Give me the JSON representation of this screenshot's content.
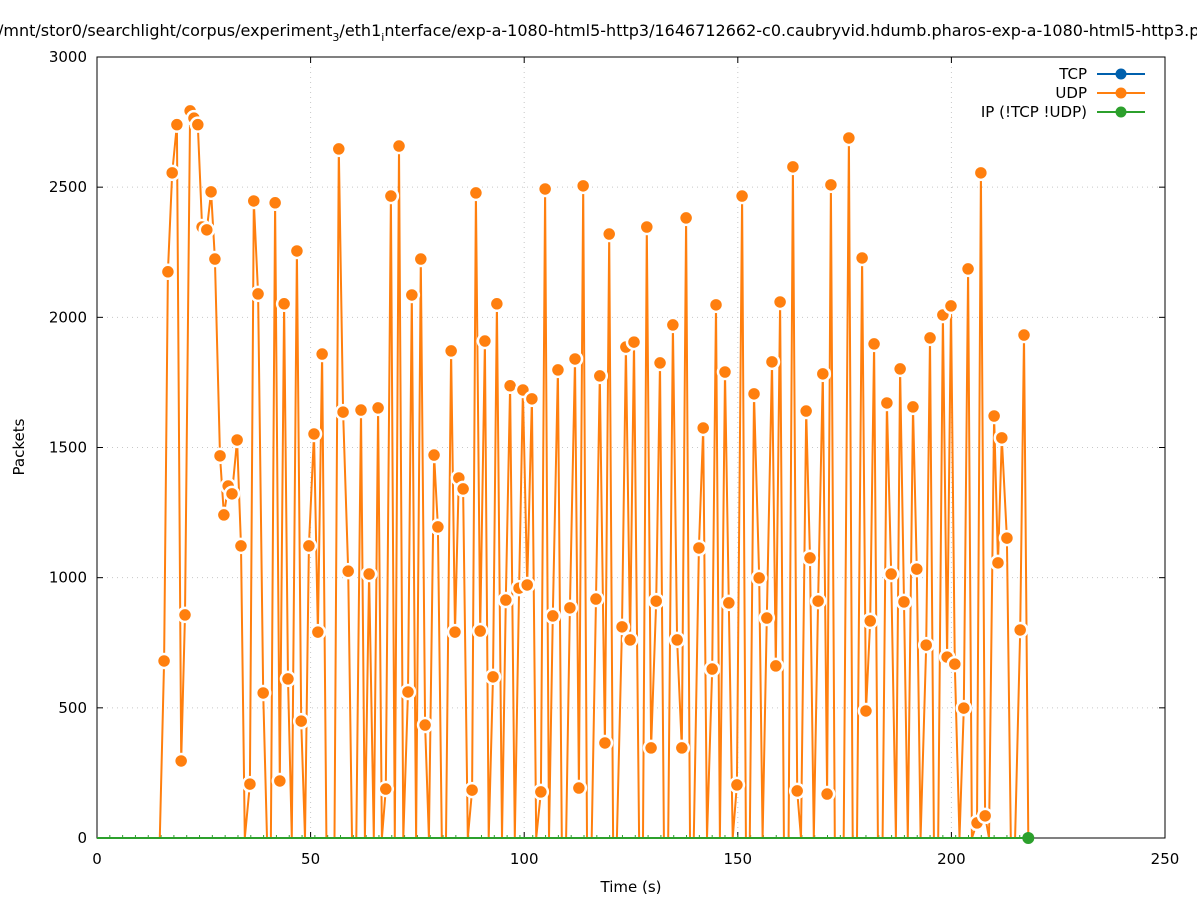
{
  "chart_data": {
    "type": "line",
    "title": "/mnt/stor0/searchlight/corpus/experiment_3/eth1_interface/exp-a-1080-html5-http3/1646712662-c0.caubryvid.hdumb.pharos-exp-a-1080-html5-http3.p",
    "xlabel": "Time (s)",
    "ylabel": "Packets",
    "xlim": [
      0,
      250
    ],
    "ylim": [
      0,
      3000
    ],
    "xticks": [
      0,
      50,
      100,
      150,
      200,
      250
    ],
    "yticks": [
      0,
      500,
      1000,
      1500,
      2000,
      2500,
      3000
    ],
    "grid": true,
    "legend_position": "top-right",
    "series": [
      {
        "name": "TCP",
        "color": "#0060ad",
        "points": []
      },
      {
        "name": "UDP",
        "color": "#ff7f0e",
        "points": [
          [
            14.7,
            0
          ],
          [
            15.7,
            680
          ],
          [
            16.6,
            2175
          ],
          [
            17.6,
            2555
          ],
          [
            18.7,
            2740
          ],
          [
            19.7,
            296
          ],
          [
            20.6,
            857
          ],
          [
            21.8,
            2793
          ],
          [
            22.7,
            2765
          ],
          [
            23.6,
            2740
          ],
          [
            24.6,
            2347
          ],
          [
            25.7,
            2336
          ],
          [
            26.7,
            2482
          ],
          [
            27.6,
            2224
          ],
          [
            28.8,
            1468
          ],
          [
            29.7,
            1241
          ],
          [
            30.7,
            1352
          ],
          [
            31.6,
            1322
          ],
          [
            32.8,
            1529
          ],
          [
            33.7,
            1122
          ],
          [
            34.6,
            0
          ],
          [
            35.8,
            207
          ],
          [
            36.7,
            2447
          ],
          [
            37.7,
            2090
          ],
          [
            38.9,
            557
          ],
          [
            39.8,
            0
          ],
          [
            40.7,
            0
          ],
          [
            41.7,
            2440
          ],
          [
            42.8,
            219
          ],
          [
            43.8,
            2052
          ],
          [
            44.7,
            611
          ],
          [
            45.6,
            0
          ],
          [
            46.8,
            2255
          ],
          [
            47.8,
            449
          ],
          [
            48.7,
            0
          ],
          [
            49.6,
            1122
          ],
          [
            50.8,
            1552
          ],
          [
            51.7,
            791
          ],
          [
            52.7,
            1859
          ],
          [
            53.7,
            0
          ],
          [
            55.6,
            0
          ],
          [
            56.6,
            2647
          ],
          [
            57.6,
            1636
          ],
          [
            58.8,
            1025
          ],
          [
            59.7,
            0
          ],
          [
            60.7,
            0
          ],
          [
            61.8,
            1644
          ],
          [
            62.7,
            0
          ],
          [
            63.7,
            1014
          ],
          [
            64.8,
            0
          ],
          [
            65.8,
            1652
          ],
          [
            66.7,
            0
          ],
          [
            67.6,
            188
          ],
          [
            68.8,
            2466
          ],
          [
            69.7,
            0
          ],
          [
            70.7,
            2658
          ],
          [
            71.7,
            0
          ],
          [
            72.8,
            561
          ],
          [
            73.7,
            2086
          ],
          [
            74.7,
            0
          ],
          [
            75.8,
            2224
          ],
          [
            76.8,
            434
          ],
          [
            77.7,
            0
          ],
          [
            78.9,
            1471
          ],
          [
            79.8,
            1195
          ],
          [
            80.7,
            0
          ],
          [
            81.7,
            0
          ],
          [
            82.9,
            1871
          ],
          [
            83.8,
            791
          ],
          [
            84.7,
            1383
          ],
          [
            85.7,
            1341
          ],
          [
            86.8,
            0
          ],
          [
            87.8,
            184
          ],
          [
            88.7,
            2478
          ],
          [
            89.7,
            795
          ],
          [
            90.8,
            1909
          ],
          [
            91.7,
            0
          ],
          [
            92.7,
            619
          ],
          [
            93.6,
            2052
          ],
          [
            94.8,
            0
          ],
          [
            95.7,
            914
          ],
          [
            96.7,
            1737
          ],
          [
            97.8,
            0
          ],
          [
            98.8,
            960
          ],
          [
            99.7,
            1721
          ],
          [
            100.7,
            972
          ],
          [
            101.8,
            1687
          ],
          [
            102.8,
            0
          ],
          [
            103.9,
            177
          ],
          [
            104.9,
            2493
          ],
          [
            105.8,
            0
          ],
          [
            106.7,
            853
          ],
          [
            107.9,
            1798
          ],
          [
            108.8,
            0
          ],
          [
            109.8,
            0
          ],
          [
            110.7,
            884
          ],
          [
            111.9,
            1840
          ],
          [
            112.8,
            192
          ],
          [
            113.8,
            2505
          ],
          [
            114.7,
            0
          ],
          [
            115.8,
            0
          ],
          [
            116.8,
            918
          ],
          [
            117.7,
            1775
          ],
          [
            118.9,
            365
          ],
          [
            119.9,
            2320
          ],
          [
            120.8,
            0
          ],
          [
            121.7,
            0
          ],
          [
            122.9,
            811
          ],
          [
            123.8,
            1886
          ],
          [
            124.8,
            761
          ],
          [
            125.7,
            1905
          ],
          [
            126.9,
            0
          ],
          [
            127.8,
            0
          ],
          [
            128.7,
            2347
          ],
          [
            129.7,
            346
          ],
          [
            130.9,
            910
          ],
          [
            131.8,
            1825
          ],
          [
            132.7,
            0
          ],
          [
            133.7,
            0
          ],
          [
            134.8,
            1971
          ],
          [
            135.8,
            761
          ],
          [
            136.9,
            346
          ],
          [
            137.9,
            2382
          ],
          [
            138.8,
            0
          ],
          [
            139.7,
            0
          ],
          [
            140.9,
            1114
          ],
          [
            141.9,
            1575
          ],
          [
            142.8,
            0
          ],
          [
            144.0,
            649
          ],
          [
            144.9,
            2048
          ],
          [
            145.8,
            0
          ],
          [
            147.0,
            1790
          ],
          [
            147.9,
            903
          ],
          [
            148.8,
            0
          ],
          [
            149.8,
            204
          ],
          [
            151.0,
            2466
          ],
          [
            151.9,
            0
          ],
          [
            152.8,
            0
          ],
          [
            153.8,
            1706
          ],
          [
            155.0,
            999
          ],
          [
            155.8,
            0
          ],
          [
            156.8,
            845
          ],
          [
            158.0,
            1829
          ],
          [
            158.9,
            661
          ],
          [
            159.9,
            2059
          ],
          [
            160.8,
            0
          ],
          [
            161.9,
            0
          ],
          [
            162.9,
            2578
          ],
          [
            163.9,
            181
          ],
          [
            164.8,
            0
          ],
          [
            166.0,
            1640
          ],
          [
            166.9,
            1076
          ],
          [
            167.8,
            0
          ],
          [
            168.8,
            910
          ],
          [
            169.9,
            1783
          ],
          [
            170.9,
            169
          ],
          [
            171.8,
            2509
          ],
          [
            172.7,
            0
          ],
          [
            173.9,
            0
          ],
          [
            174.8,
            0
          ],
          [
            176.0,
            2689
          ],
          [
            176.9,
            0
          ],
          [
            177.9,
            0
          ],
          [
            179.1,
            2228
          ],
          [
            180.0,
            488
          ],
          [
            181.0,
            834
          ],
          [
            181.9,
            1898
          ],
          [
            182.8,
            0
          ],
          [
            183.9,
            0
          ],
          [
            184.9,
            1671
          ],
          [
            185.9,
            1014
          ],
          [
            187.0,
            0
          ],
          [
            188.0,
            1802
          ],
          [
            188.9,
            907
          ],
          [
            189.8,
            0
          ],
          [
            191.0,
            1656
          ],
          [
            191.9,
            1033
          ],
          [
            192.8,
            0
          ],
          [
            194.1,
            741
          ],
          [
            195.0,
            1921
          ],
          [
            195.9,
            0
          ],
          [
            196.9,
            0
          ],
          [
            198.0,
            2009
          ],
          [
            199.0,
            695
          ],
          [
            199.9,
            2044
          ],
          [
            200.8,
            668
          ],
          [
            201.9,
            0
          ],
          [
            202.9,
            499
          ],
          [
            203.9,
            2186
          ],
          [
            204.8,
            0
          ],
          [
            206.0,
            58
          ],
          [
            206.9,
            2555
          ],
          [
            207.9,
            85
          ],
          [
            208.8,
            0
          ],
          [
            210.0,
            1621
          ],
          [
            210.9,
            1057
          ],
          [
            211.8,
            1537
          ],
          [
            213.0,
            1152
          ],
          [
            213.9,
            0
          ],
          [
            214.9,
            0
          ],
          [
            216.1,
            799
          ],
          [
            217.0,
            1932
          ],
          [
            218.0,
            0
          ]
        ]
      },
      {
        "name": "IP (!TCP  !UDP)",
        "color": "#2ca02c",
        "points": [
          [
            0,
            0
          ],
          [
            218,
            0
          ]
        ]
      }
    ]
  }
}
